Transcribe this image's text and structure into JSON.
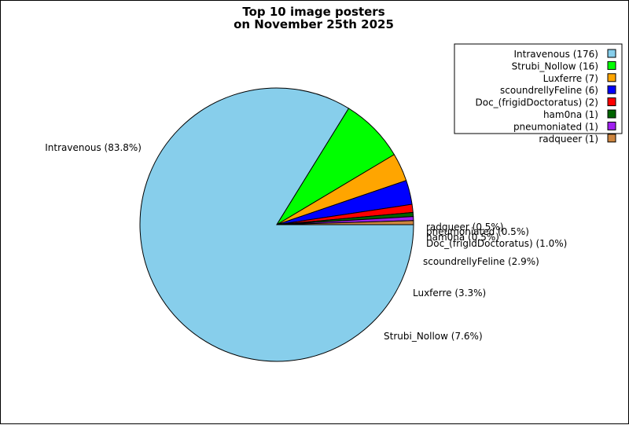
{
  "chart_data": {
    "type": "pie",
    "title_lines": [
      "Top 10 image posters",
      "on November 25th 2025"
    ],
    "slices": [
      {
        "label": "Intravenous",
        "count": 176,
        "percent_label": "83.8%",
        "color": "#87ceeb"
      },
      {
        "label": "Strubi_Nollow",
        "count": 16,
        "percent_label": "7.6%",
        "color": "#00ff00"
      },
      {
        "label": "Luxferre",
        "count": 7,
        "percent_label": "3.3%",
        "color": "#ffa500"
      },
      {
        "label": "scoundrellyFeline",
        "count": 6,
        "percent_label": "2.9%",
        "color": "#0000ff"
      },
      {
        "label": "Doc_(frigidDoctoratus)",
        "count": 2,
        "percent_label": "1.0%",
        "color": "#ff0000"
      },
      {
        "label": "ham0na",
        "count": 1,
        "percent_label": "0.5%",
        "color": "#006400"
      },
      {
        "label": "pneumoniated",
        "count": 1,
        "percent_label": "0.5%",
        "color": "#a020f0"
      },
      {
        "label": "radqueer",
        "count": 1,
        "percent_label": "0.5%",
        "color": "#cd853f"
      }
    ],
    "legend_position": "top-right",
    "start_angle_deg": 0,
    "direction": "clockwise"
  }
}
